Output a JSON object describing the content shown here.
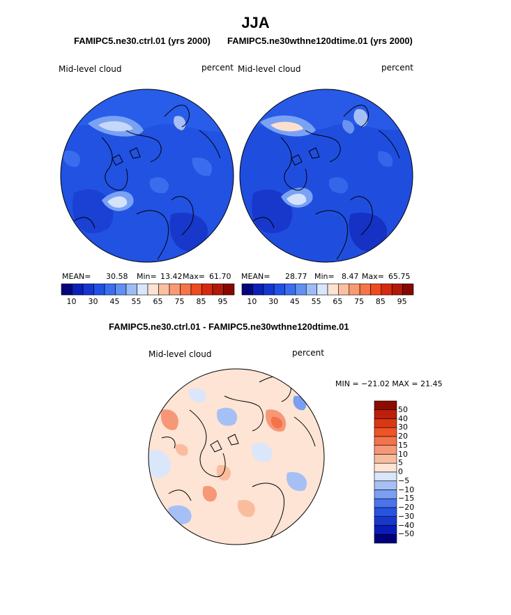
{
  "figure": {
    "title": "JJA",
    "case1": "FAMIPC5.ne30.ctrl.01 (yrs 2000)",
    "case2": "FAMIPC5.ne30wthne120dtime.01 (yrs 2000)",
    "diff_title": "FAMIPC5.ne30.ctrl.01 - FAMIPC5.ne30wthne120dtime.01"
  },
  "colors": {
    "field_bar": [
      "#06067a",
      "#0a20b8",
      "#1535d0",
      "#2050e6",
      "#3a6ef0",
      "#6090f2",
      "#9cbcf6",
      "#d9e6fb",
      "#fde3d2",
      "#fbc0a0",
      "#f89a72",
      "#f67448",
      "#ef4a20",
      "#d52a10",
      "#b01a08",
      "#860800"
    ],
    "diff_bar": [
      "#00007c",
      "#0a1cb8",
      "#1838cc",
      "#2852e0",
      "#4a74ec",
      "#7c9ef2",
      "#a6c0f6",
      "#dae6fa",
      "#fde4d4",
      "#f9bd9e",
      "#f69878",
      "#f2734c",
      "#ee5426",
      "#da3812",
      "#bc200a",
      "#8c0a00"
    ]
  },
  "chart_data": [
    {
      "type": "heatmap",
      "panel": "ctrl",
      "variable": "Mid-level cloud",
      "units": "percent",
      "stats": {
        "mean": 30.58,
        "min": 13.42,
        "max": 61.7
      },
      "stats_text": {
        "mean_label": "MEAN=",
        "mean": "30.58",
        "min_label": "Min=",
        "min": "13.42",
        "max_label": "Max=",
        "max": "61.70"
      },
      "colorbar_ticks": [
        "10",
        "30",
        "45",
        "55",
        "65",
        "75",
        "85",
        "95"
      ]
    },
    {
      "type": "heatmap",
      "panel": "test",
      "variable": "Mid-level cloud",
      "units": "percent",
      "stats": {
        "mean": 28.77,
        "min": 8.47,
        "max": 65.75
      },
      "stats_text": {
        "mean_label": "MEAN=",
        "mean": "28.77",
        "min_label": "Min=",
        "min": "8.47",
        "max_label": "Max=",
        "max": "65.75"
      },
      "colorbar_ticks": [
        "10",
        "30",
        "45",
        "55",
        "65",
        "75",
        "85",
        "95"
      ]
    },
    {
      "type": "heatmap",
      "panel": "difference",
      "variable": "Mid-level cloud",
      "units": "percent",
      "stats": {
        "min": -21.02,
        "max": 21.45
      },
      "stats_text": "MIN = −21.02 MAX =  21.45",
      "colorbar_ticks": [
        "50",
        "40",
        "30",
        "20",
        "15",
        "10",
        "5",
        "0",
        "−5",
        "−10",
        "−15",
        "−20",
        "−30",
        "−40",
        "−50"
      ]
    }
  ]
}
